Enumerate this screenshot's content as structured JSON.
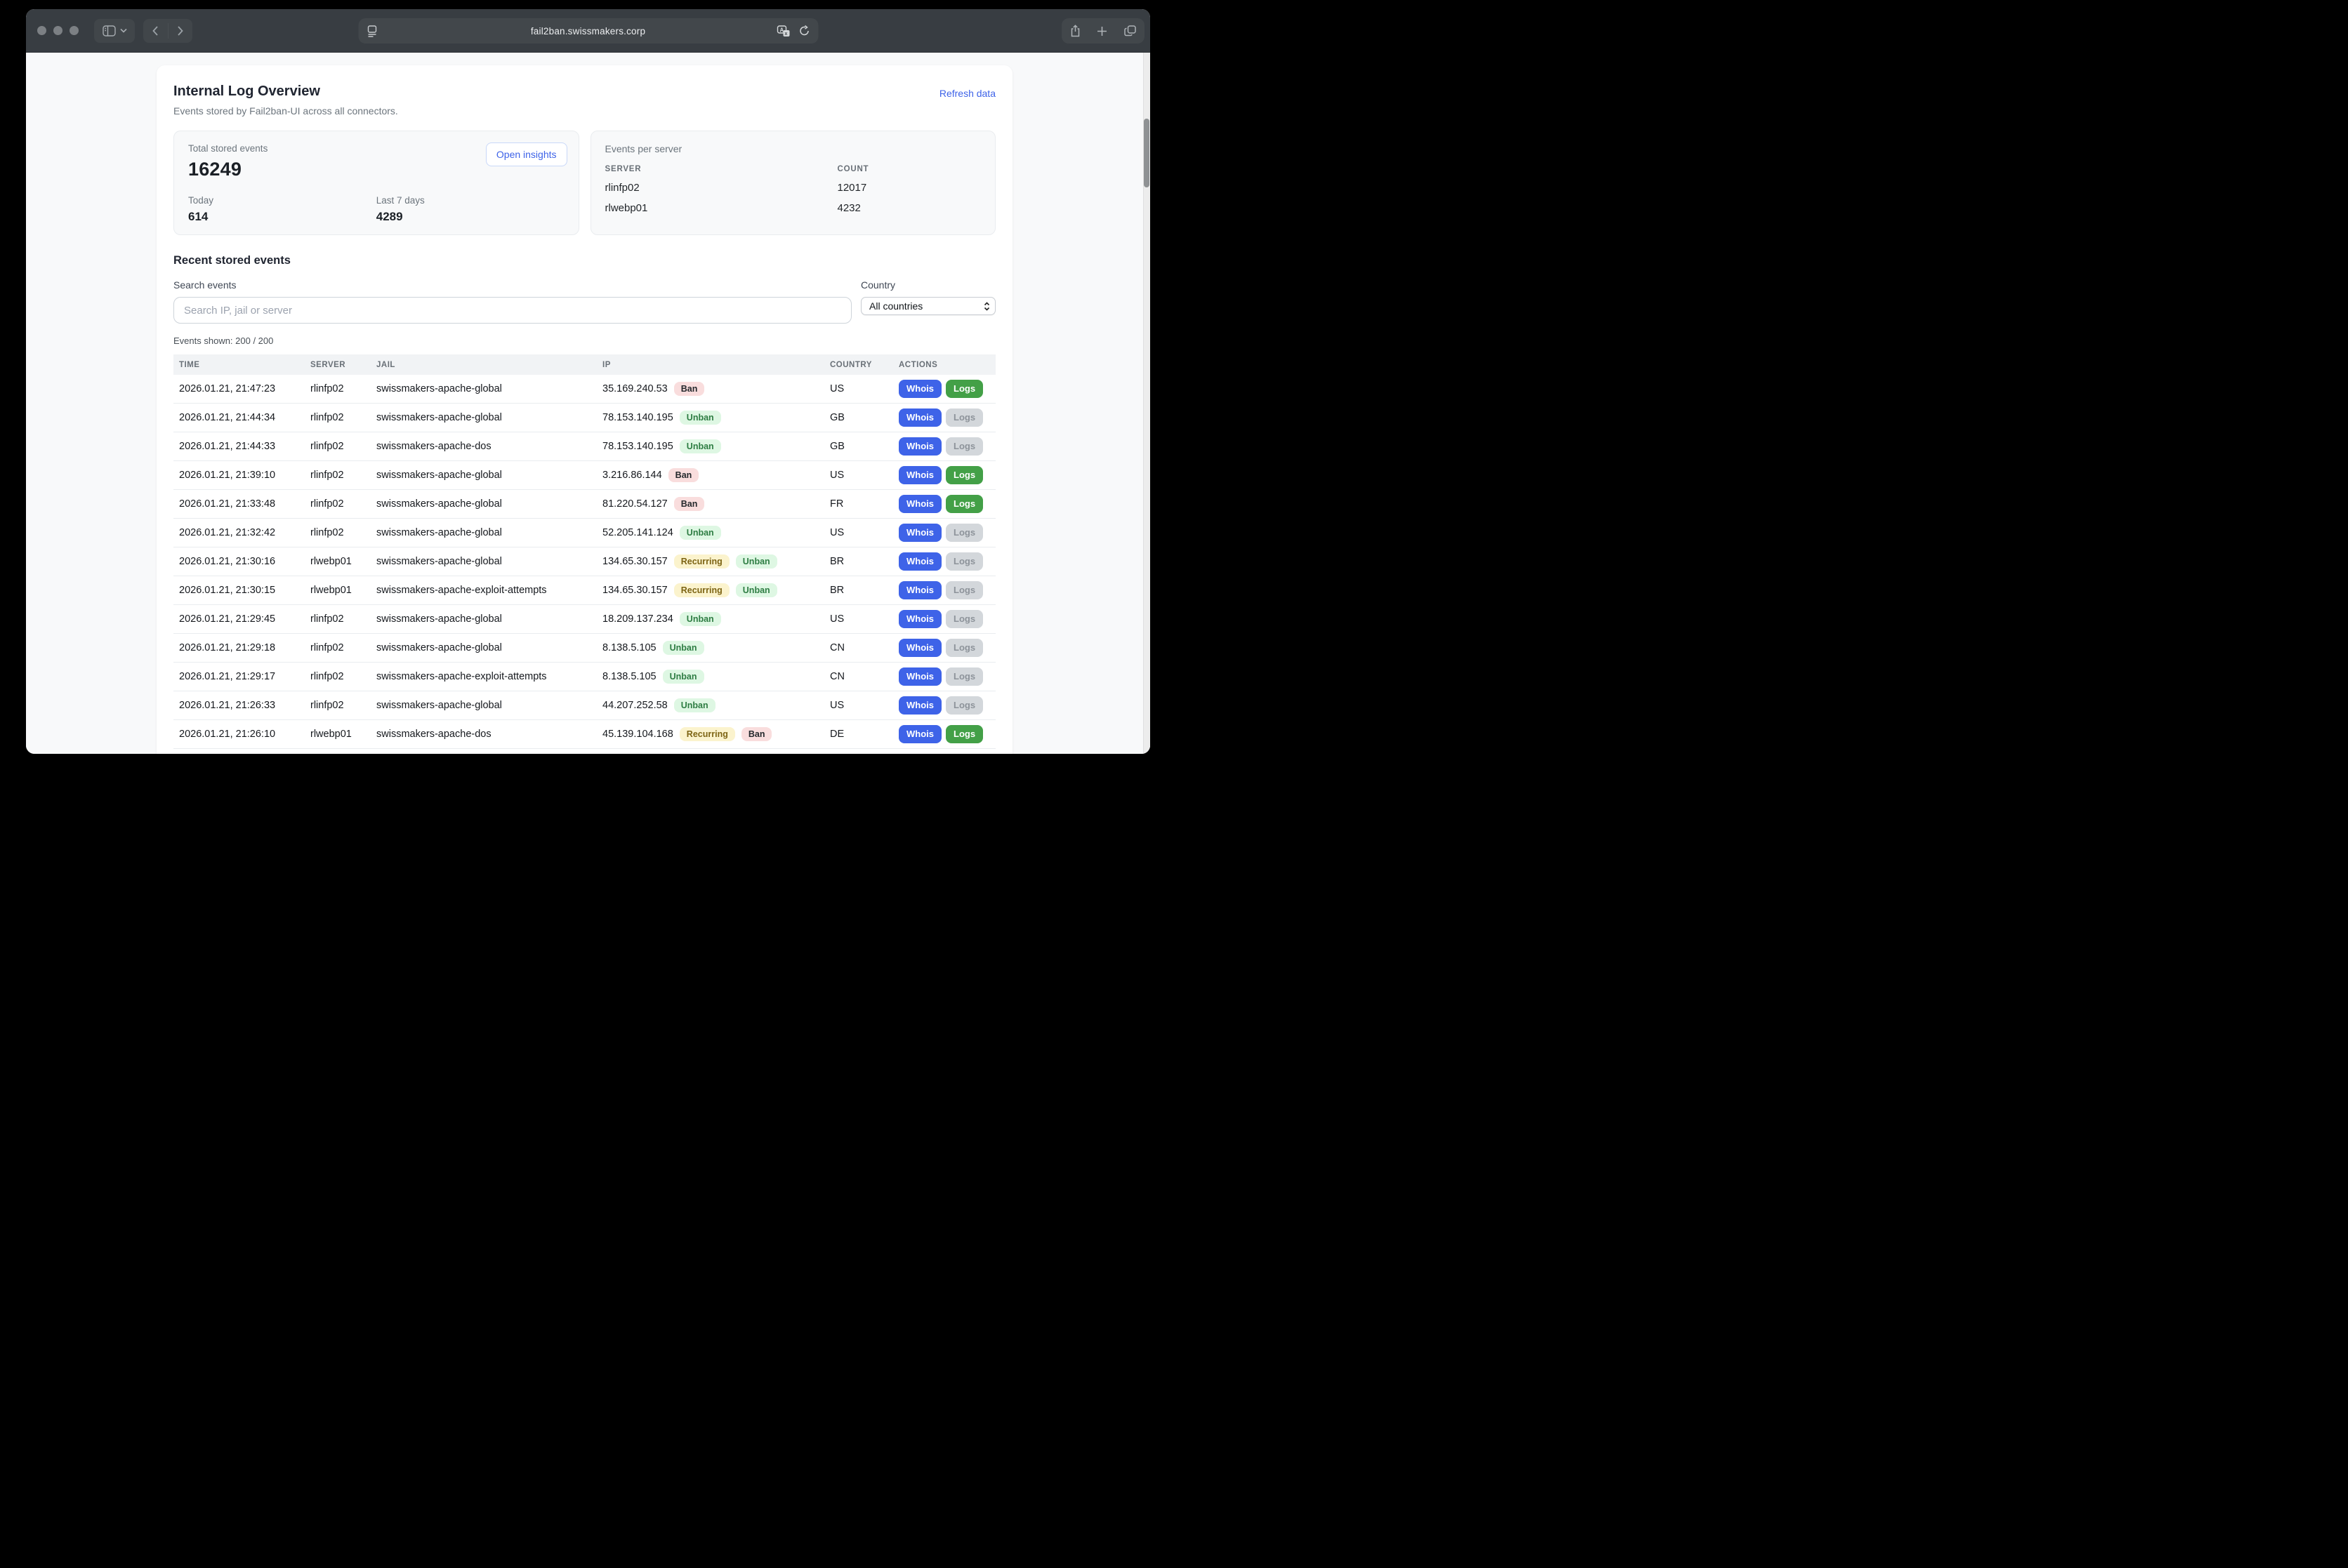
{
  "browser": {
    "url": "fail2ban.swissmakers.corp",
    "colors": {
      "toolbar_bg": "#383d42",
      "pill_bg": "#42474b"
    }
  },
  "page": {
    "title": "Internal Log Overview",
    "subtitle": "Events stored by Fail2ban-UI across all connectors.",
    "refresh_label": "Refresh data",
    "stats": {
      "total_label": "Total stored events",
      "total_value": "16249",
      "open_insights_label": "Open insights",
      "today_label": "Today",
      "today_value": "614",
      "last7_label": "Last 7 days",
      "last7_value": "4289"
    },
    "per_server": {
      "title": "Events per server",
      "columns": {
        "server": "SERVER",
        "count": "COUNT"
      },
      "rows": [
        {
          "server": "rlinfp02",
          "count": "12017"
        },
        {
          "server": "rlwebp01",
          "count": "4232"
        }
      ]
    },
    "recent": {
      "title": "Recent stored events",
      "search_label": "Search events",
      "search_placeholder": "Search IP, jail or server",
      "country_label": "Country",
      "country_value": "All countries",
      "events_shown": "Events shown: 200 / 200",
      "table": {
        "headers": {
          "time": "TIME",
          "server": "SERVER",
          "jail": "JAIL",
          "ip": "IP",
          "country": "COUNTRY",
          "actions": "ACTIONS"
        },
        "whois_label": "Whois",
        "logs_label": "Logs",
        "rows": [
          {
            "time": "2026.01.21, 21:47:23",
            "server": "rlinfp02",
            "jail": "swissmakers-apache-global",
            "ip": "35.169.240.53",
            "badges": [
              {
                "label": "Ban",
                "type": "ban"
              }
            ],
            "country": "US",
            "logs_active": true
          },
          {
            "time": "2026.01.21, 21:44:34",
            "server": "rlinfp02",
            "jail": "swissmakers-apache-global",
            "ip": "78.153.140.195",
            "badges": [
              {
                "label": "Unban",
                "type": "unban"
              }
            ],
            "country": "GB",
            "logs_active": false
          },
          {
            "time": "2026.01.21, 21:44:33",
            "server": "rlinfp02",
            "jail": "swissmakers-apache-dos",
            "ip": "78.153.140.195",
            "badges": [
              {
                "label": "Unban",
                "type": "unban"
              }
            ],
            "country": "GB",
            "logs_active": false
          },
          {
            "time": "2026.01.21, 21:39:10",
            "server": "rlinfp02",
            "jail": "swissmakers-apache-global",
            "ip": "3.216.86.144",
            "badges": [
              {
                "label": "Ban",
                "type": "ban"
              }
            ],
            "country": "US",
            "logs_active": true
          },
          {
            "time": "2026.01.21, 21:33:48",
            "server": "rlinfp02",
            "jail": "swissmakers-apache-global",
            "ip": "81.220.54.127",
            "badges": [
              {
                "label": "Ban",
                "type": "ban"
              }
            ],
            "country": "FR",
            "logs_active": true
          },
          {
            "time": "2026.01.21, 21:32:42",
            "server": "rlinfp02",
            "jail": "swissmakers-apache-global",
            "ip": "52.205.141.124",
            "badges": [
              {
                "label": "Unban",
                "type": "unban"
              }
            ],
            "country": "US",
            "logs_active": false
          },
          {
            "time": "2026.01.21, 21:30:16",
            "server": "rlwebp01",
            "jail": "swissmakers-apache-global",
            "ip": "134.65.30.157",
            "badges": [
              {
                "label": "Recurring",
                "type": "recurring"
              },
              {
                "label": "Unban",
                "type": "unban"
              }
            ],
            "country": "BR",
            "logs_active": false
          },
          {
            "time": "2026.01.21, 21:30:15",
            "server": "rlwebp01",
            "jail": "swissmakers-apache-exploit-attempts",
            "ip": "134.65.30.157",
            "badges": [
              {
                "label": "Recurring",
                "type": "recurring"
              },
              {
                "label": "Unban",
                "type": "unban"
              }
            ],
            "country": "BR",
            "logs_active": false
          },
          {
            "time": "2026.01.21, 21:29:45",
            "server": "rlinfp02",
            "jail": "swissmakers-apache-global",
            "ip": "18.209.137.234",
            "badges": [
              {
                "label": "Unban",
                "type": "unban"
              }
            ],
            "country": "US",
            "logs_active": false
          },
          {
            "time": "2026.01.21, 21:29:18",
            "server": "rlinfp02",
            "jail": "swissmakers-apache-global",
            "ip": "8.138.5.105",
            "badges": [
              {
                "label": "Unban",
                "type": "unban"
              }
            ],
            "country": "CN",
            "logs_active": false
          },
          {
            "time": "2026.01.21, 21:29:17",
            "server": "rlinfp02",
            "jail": "swissmakers-apache-exploit-attempts",
            "ip": "8.138.5.105",
            "badges": [
              {
                "label": "Unban",
                "type": "unban"
              }
            ],
            "country": "CN",
            "logs_active": false
          },
          {
            "time": "2026.01.21, 21:26:33",
            "server": "rlinfp02",
            "jail": "swissmakers-apache-global",
            "ip": "44.207.252.58",
            "badges": [
              {
                "label": "Unban",
                "type": "unban"
              }
            ],
            "country": "US",
            "logs_active": false
          },
          {
            "time": "2026.01.21, 21:26:10",
            "server": "rlwebp01",
            "jail": "swissmakers-apache-dos",
            "ip": "45.139.104.168",
            "badges": [
              {
                "label": "Recurring",
                "type": "recurring"
              },
              {
                "label": "Ban",
                "type": "ban"
              }
            ],
            "country": "DE",
            "logs_active": true
          }
        ]
      }
    },
    "colors": {
      "accent_blue": "#3e63e8",
      "logs_green": "#43a047",
      "ban_bg": "#f9dddd",
      "unban_bg": "#def7e3",
      "unban_text": "#2e7d43",
      "recurring_bg": "#fbf3cd",
      "recurring_text": "#7d6414"
    }
  }
}
